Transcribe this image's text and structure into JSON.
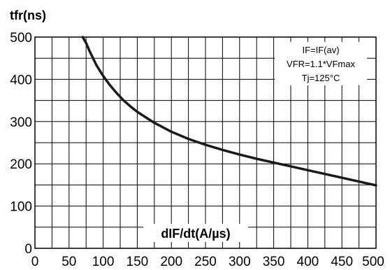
{
  "chart_data": {
    "type": "line",
    "title": "",
    "xlabel": "dIF/dt(A/µs)",
    "ylabel": "tfr(ns)",
    "xlim": [
      0,
      500
    ],
    "ylim": [
      0,
      500
    ],
    "xticks": [
      0,
      50,
      100,
      150,
      200,
      250,
      300,
      350,
      400,
      450,
      500
    ],
    "yticks": [
      0,
      100,
      200,
      300,
      400,
      500
    ],
    "grid": true,
    "annotations": [
      "IF=IF(av)",
      "VFR=1.1*VFmax",
      "Tj=125°C"
    ],
    "annotation_placement": "top-right",
    "series": [
      {
        "x": [
          70,
          75,
          80,
          90,
          100,
          110,
          120,
          130,
          140,
          150,
          175,
          200,
          225,
          250,
          275,
          300,
          325,
          350,
          375,
          400,
          425,
          450,
          475,
          500
        ],
        "y": [
          505,
          486,
          467,
          434,
          408,
          386,
          367,
          350,
          336,
          323,
          297,
          276,
          259,
          245,
          233,
          222,
          212,
          203,
          194,
          185,
          176,
          167,
          158,
          149
        ],
        "color": "#1a1a1a"
      }
    ]
  }
}
